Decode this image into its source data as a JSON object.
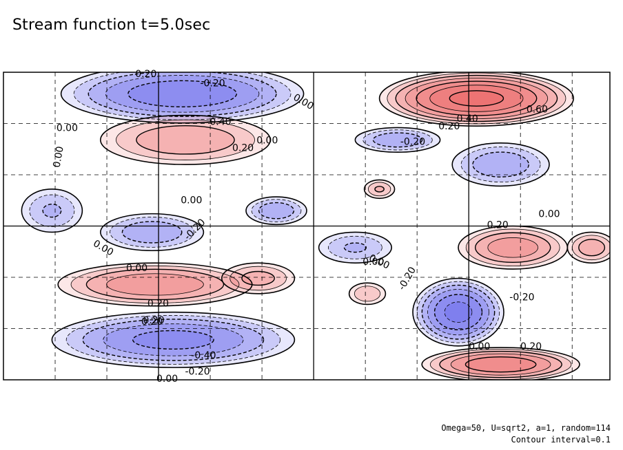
{
  "title": "Stream function t=5.0sec",
  "footnote": {
    "params": "Omega=50, U=sqrt2, a=1, random=114",
    "contour_interval": "Contour interval=0.1"
  },
  "colors": {
    "positive": "#e83a3a",
    "negative": "#3a3ae8",
    "frame": "#000000"
  },
  "chart_data": {
    "type": "heatmap",
    "title": "Stream function t=5.0sec",
    "xlabel": "",
    "ylabel": "",
    "contour_interval": 0.1,
    "grid": "dashed",
    "contour_labels": [
      {
        "text": "0.20"
      },
      {
        "text": "-0.20"
      },
      {
        "text": "0.00"
      },
      {
        "text": "-0.40"
      },
      {
        "text": "0.00"
      },
      {
        "text": "0.20"
      },
      {
        "text": "0.00"
      },
      {
        "text": "0.00"
      },
      {
        "text": "0.60"
      },
      {
        "text": "0.40"
      },
      {
        "text": "0.20"
      },
      {
        "text": "-0.20"
      },
      {
        "text": "0.00"
      },
      {
        "text": "-0.20"
      },
      {
        "text": "0.00"
      },
      {
        "text": "0.20"
      },
      {
        "text": "0.00"
      },
      {
        "text": "0.20"
      },
      {
        "text": "0.00"
      },
      {
        "text": "-0.20"
      },
      {
        "text": "-0.20"
      },
      {
        "text": "-0.20"
      },
      {
        "text": "0.20"
      },
      {
        "text": "-0.40"
      },
      {
        "text": "0.00"
      },
      {
        "text": "-0.20"
      },
      {
        "text": "0.00"
      },
      {
        "text": "0.20"
      },
      {
        "text": "0.00"
      },
      {
        "text": "0.00"
      }
    ],
    "features": [
      {
        "sign": "negative",
        "peak": -0.5,
        "shape": [
          {
            "x": 0.295,
            "y": 0.93,
            "rx": 0.2,
            "ry": 0.095
          }
        ]
      },
      {
        "sign": "positive",
        "peak": 0.65,
        "shape": [
          {
            "x": 0.78,
            "y": 0.915,
            "rx": 0.16,
            "ry": 0.09
          }
        ]
      },
      {
        "sign": "positive",
        "peak": 0.3,
        "shape": [
          {
            "x": 0.3,
            "y": 0.78,
            "rx": 0.14,
            "ry": 0.08
          }
        ]
      },
      {
        "sign": "negative",
        "peak": -0.3,
        "shape": [
          {
            "x": 0.65,
            "y": 0.78,
            "rx": 0.07,
            "ry": 0.04
          },
          {
            "x": 0.82,
            "y": 0.7,
            "rx": 0.08,
            "ry": 0.07
          }
        ]
      },
      {
        "sign": "negative",
        "peak": -0.22,
        "shape": [
          {
            "x": 0.08,
            "y": 0.55,
            "rx": 0.05,
            "ry": 0.07
          }
        ]
      },
      {
        "sign": "negative",
        "peak": -0.3,
        "shape": [
          {
            "x": 0.245,
            "y": 0.48,
            "rx": 0.085,
            "ry": 0.06
          },
          {
            "x": 0.45,
            "y": 0.55,
            "rx": 0.05,
            "ry": 0.045
          }
        ]
      },
      {
        "sign": "positive",
        "peak": 0.38,
        "shape": [
          {
            "x": 0.84,
            "y": 0.43,
            "rx": 0.09,
            "ry": 0.07
          }
        ]
      },
      {
        "sign": "positive",
        "peak": 0.28,
        "shape": [
          {
            "x": 0.97,
            "y": 0.43,
            "rx": 0.04,
            "ry": 0.05
          }
        ]
      },
      {
        "sign": "negative",
        "peak": -0.22,
        "shape": [
          {
            "x": 0.58,
            "y": 0.43,
            "rx": 0.06,
            "ry": 0.05
          }
        ]
      },
      {
        "sign": "positive",
        "peak": 0.4,
        "shape": [
          {
            "x": 0.25,
            "y": 0.31,
            "rx": 0.16,
            "ry": 0.07
          }
        ]
      },
      {
        "sign": "positive",
        "peak": 0.25,
        "shape": [
          {
            "x": 0.42,
            "y": 0.33,
            "rx": 0.06,
            "ry": 0.05
          }
        ]
      },
      {
        "sign": "negative",
        "peak": -0.55,
        "shape": [
          {
            "x": 0.75,
            "y": 0.22,
            "rx": 0.075,
            "ry": 0.11
          }
        ]
      },
      {
        "sign": "negative",
        "peak": -0.45,
        "shape": [
          {
            "x": 0.28,
            "y": 0.13,
            "rx": 0.2,
            "ry": 0.09
          }
        ]
      },
      {
        "sign": "positive",
        "peak": 0.5,
        "shape": [
          {
            "x": 0.82,
            "y": 0.05,
            "rx": 0.13,
            "ry": 0.055
          }
        ]
      },
      {
        "sign": "positive",
        "peak": 0.22,
        "shape": [
          {
            "x": 0.62,
            "y": 0.62,
            "rx": 0.025,
            "ry": 0.03
          }
        ]
      },
      {
        "sign": "positive",
        "peak": 0.2,
        "shape": [
          {
            "x": 0.6,
            "y": 0.28,
            "rx": 0.03,
            "ry": 0.035
          }
        ]
      }
    ]
  }
}
